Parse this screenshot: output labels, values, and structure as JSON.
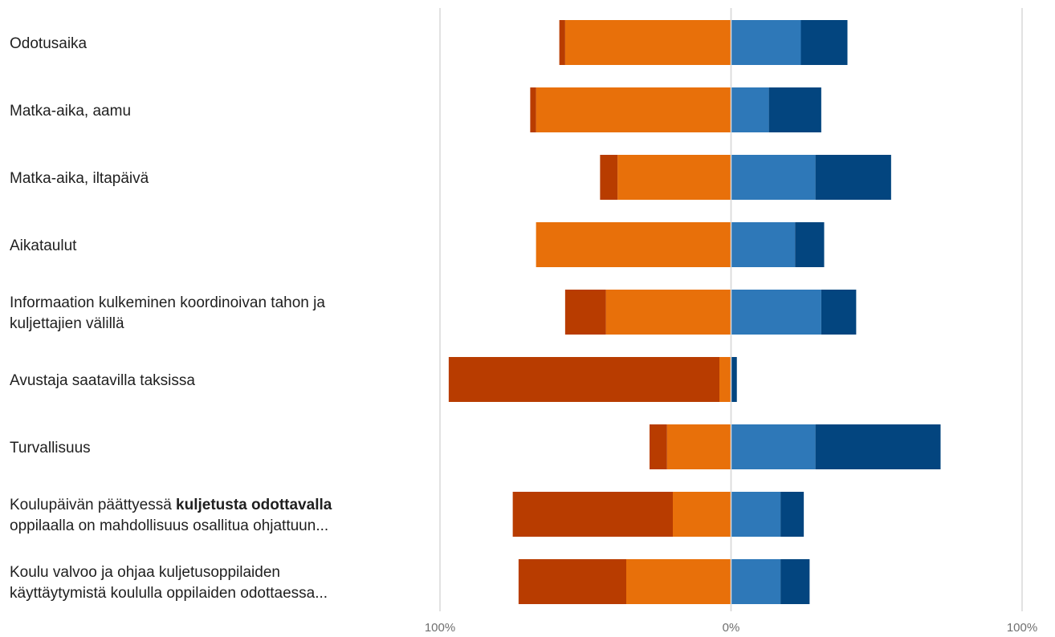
{
  "chart_data": {
    "type": "bar",
    "orientation": "horizontal",
    "layout": "diverging-stacked",
    "categories": [
      {
        "lines": [
          [
            {
              "text": "Odotusaika",
              "bold": false
            }
          ]
        ]
      },
      {
        "lines": [
          [
            {
              "text": "Matka-aika, aamu",
              "bold": false
            }
          ]
        ]
      },
      {
        "lines": [
          [
            {
              "text": "Matka-aika, iltapäivä",
              "bold": false
            }
          ]
        ]
      },
      {
        "lines": [
          [
            {
              "text": "Aikataulut",
              "bold": false
            }
          ]
        ]
      },
      {
        "lines": [
          [
            {
              "text": "Informaation kulkeminen koordinoivan tahon ja",
              "bold": false
            }
          ],
          [
            {
              "text": "kuljettajien välillä",
              "bold": false
            }
          ]
        ]
      },
      {
        "lines": [
          [
            {
              "text": "Avustaja saatavilla taksissa",
              "bold": false
            }
          ]
        ]
      },
      {
        "lines": [
          [
            {
              "text": "Turvallisuus",
              "bold": false
            }
          ]
        ]
      },
      {
        "lines": [
          [
            {
              "text": "Koulupäivän päättyessä ",
              "bold": false
            },
            {
              "text": "kuljetusta odottavalla",
              "bold": true
            }
          ],
          [
            {
              "text": "oppilaalla on  mahdollisuus osallitua ohjattuun...",
              "bold": false
            }
          ]
        ]
      },
      {
        "lines": [
          [
            {
              "text": "Koulu valvoo ja ohjaa kuljetusoppilaiden",
              "bold": false
            }
          ],
          [
            {
              "text": "käyttäytymistä koululla oppilaiden odottaessa...",
              "bold": false
            }
          ]
        ]
      }
    ],
    "series": [
      {
        "side": "negative",
        "color": "#b83c00",
        "values": [
          2,
          2,
          6,
          0,
          14,
          93,
          6,
          55,
          37
        ]
      },
      {
        "side": "negative",
        "color": "#e8700a",
        "values": [
          57,
          67,
          39,
          67,
          43,
          4,
          22,
          20,
          36
        ]
      },
      {
        "side": "positive",
        "color": "#2e78b8",
        "values": [
          24,
          13,
          29,
          22,
          31,
          0,
          29,
          17,
          17
        ]
      },
      {
        "side": "positive",
        "color": "#03457f",
        "values": [
          16,
          18,
          26,
          10,
          12,
          2,
          43,
          8,
          10
        ]
      }
    ],
    "xlim": [
      -100,
      100
    ],
    "x_ticks": [
      {
        "value": -100,
        "label": "100%"
      },
      {
        "value": 0,
        "label": "0%"
      },
      {
        "value": 100,
        "label": "100%"
      }
    ],
    "gridlines": true,
    "legend": "none"
  }
}
